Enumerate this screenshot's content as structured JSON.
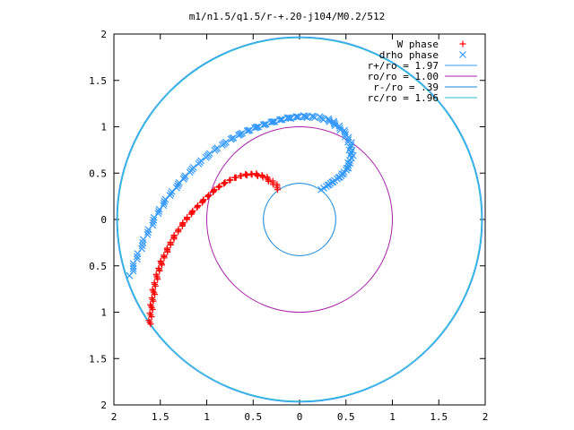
{
  "chart_data": {
    "type": "scatter",
    "title": "m1/n1.5/q1.5/r-+.20-j104/M0.2/512",
    "xlabel": "",
    "ylabel": "",
    "xlim": [
      -2,
      2
    ],
    "ylim": [
      -2,
      2
    ],
    "grid": false,
    "legend_position": "top-right",
    "x_ticks": [
      "2",
      "1.5",
      "1",
      "0.5",
      "0",
      "0.5",
      "1",
      "1.5",
      "2"
    ],
    "y_ticks": [
      "2",
      "1.5",
      "1",
      "0.5",
      "0",
      "0.5",
      "1",
      "1.5",
      "2"
    ],
    "series": [
      {
        "name": "W phase",
        "style": "points-plus",
        "color": "#ff0000",
        "x": [
          -0.22,
          -0.3,
          -0.4,
          -0.5,
          -0.6,
          -0.7,
          -0.8,
          -0.9,
          -1.0,
          -1.1,
          -1.2,
          -1.28,
          -1.36,
          -1.42,
          -1.48,
          -1.52,
          -1.56,
          -1.58,
          -1.6,
          -1.61
        ],
        "y": [
          0.33,
          0.41,
          0.47,
          0.49,
          0.48,
          0.45,
          0.4,
          0.33,
          0.24,
          0.14,
          0.03,
          -0.08,
          -0.2,
          -0.32,
          -0.44,
          -0.56,
          -0.7,
          -0.84,
          -0.98,
          -1.13
        ]
      },
      {
        "name": "drho phase",
        "style": "points-x",
        "color": "#3399ff",
        "x": [
          0.25,
          0.35,
          0.45,
          0.52,
          0.56,
          0.55,
          0.5,
          0.4,
          0.3,
          0.15,
          0.0,
          -0.15,
          -0.3,
          -0.45,
          -0.6,
          -0.75,
          -0.9,
          -1.05,
          -1.2,
          -1.32,
          -1.45,
          -1.55,
          -1.65,
          -1.75,
          -1.82
        ],
        "y": [
          0.33,
          0.4,
          0.47,
          0.56,
          0.68,
          0.8,
          0.92,
          1.02,
          1.08,
          1.11,
          1.11,
          1.09,
          1.05,
          1.0,
          0.94,
          0.86,
          0.76,
          0.64,
          0.5,
          0.36,
          0.2,
          0.03,
          -0.17,
          -0.4,
          -0.6
        ]
      },
      {
        "name": "r+/ro = 1.97",
        "style": "circle",
        "color": "#3399ff",
        "radius": 1.97
      },
      {
        "name": "ro/ro = 1.00",
        "style": "circle",
        "color": "#aa22aa",
        "radius": 1.0
      },
      {
        "name": "r-/ro = .39",
        "style": "circle",
        "color": "#1188dd",
        "radius": 0.39
      },
      {
        "name": "rc/ro = 1.96",
        "style": "circle",
        "color": "#22bbcc",
        "radius": 1.96
      }
    ]
  }
}
